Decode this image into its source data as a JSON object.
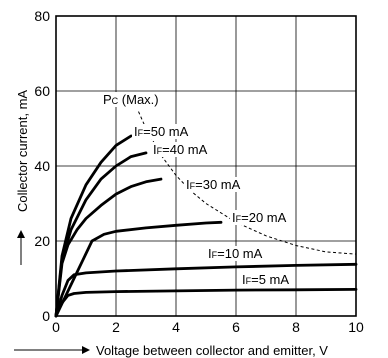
{
  "chart_data": {
    "type": "line",
    "xlabel": "Voltage between collector and emitter, V",
    "ylabel": "Collector current, mA",
    "xlim": [
      0,
      10
    ],
    "ylim": [
      0,
      80
    ],
    "x_ticks": [
      "0",
      "2",
      "4",
      "6",
      "8",
      "10"
    ],
    "y_ticks": [
      "0",
      "20",
      "40",
      "60",
      "80"
    ],
    "grid": true,
    "series": [
      {
        "name": "IF=50 mA",
        "label_main": "I",
        "label_sub": "F",
        "label_rest": "=50 mA",
        "x": [
          0,
          0.2,
          0.5,
          1.0,
          1.5,
          2.0,
          2.5
        ],
        "y": [
          0,
          16,
          26,
          35,
          41,
          45.5,
          48
        ]
      },
      {
        "name": "IF=40 mA",
        "label_main": "I",
        "label_sub": "F",
        "label_rest": "=40 mA",
        "x": [
          0,
          0.2,
          0.5,
          1.0,
          1.5,
          2.0,
          2.5,
          3.0
        ],
        "y": [
          0,
          15,
          23,
          31,
          36.5,
          40,
          42.5,
          43.5
        ]
      },
      {
        "name": "IF=30 mA",
        "label_main": "I",
        "label_sub": "F",
        "label_rest": "=30 mA",
        "x": [
          0,
          0.2,
          0.4,
          0.7,
          1.0,
          1.5,
          2.0,
          2.5,
          3.0,
          3.5
        ],
        "y": [
          0,
          14,
          19,
          23,
          26,
          29.5,
          32.5,
          34.5,
          35.8,
          36.5
        ]
      },
      {
        "name": "IF=20 mA",
        "label_main": "I",
        "label_sub": "F",
        "label_rest": "=20 mA",
        "x": [
          0,
          0.3,
          0.6,
          0.9,
          1.2,
          1.6,
          2.0,
          3.0,
          4.0,
          5.0,
          5.5
        ],
        "y": [
          0,
          5,
          10,
          15,
          20,
          21.8,
          22.6,
          23.5,
          24.2,
          24.8,
          25
        ]
      },
      {
        "name": "IF=10 mA",
        "label_main": "I",
        "label_sub": "F",
        "label_rest": "=10 mA",
        "x": [
          0,
          0.2,
          0.4,
          0.6,
          1.0,
          2.0,
          4.0,
          6.0,
          8.0,
          10.0
        ],
        "y": [
          0,
          5.5,
          9.5,
          11,
          11.5,
          12,
          12.6,
          13.1,
          13.5,
          13.8
        ]
      },
      {
        "name": "IF=5 mA",
        "label_main": "I",
        "label_sub": "F",
        "label_rest": "=5 mA",
        "x": [
          0,
          0.2,
          0.4,
          0.6,
          1.0,
          2.0,
          4.0,
          6.0,
          8.0,
          10.0
        ],
        "y": [
          0,
          3.5,
          5.5,
          6.0,
          6.3,
          6.5,
          6.7,
          6.9,
          7.0,
          7.1
        ]
      }
    ],
    "max_curve": {
      "name": "Pc (Max.)",
      "label_main": "P",
      "label_sub": "C",
      "label_rest": " (Max.)",
      "style": "dashed",
      "x": [
        2.75,
        3.0,
        3.5,
        4.0,
        4.5,
        5.0,
        6.0,
        7.0,
        8.0,
        9.0,
        10.0
      ],
      "y": [
        54.5,
        50,
        42.9,
        37.5,
        33.3,
        30,
        25,
        21.4,
        18.8,
        17.1,
        16.5
      ]
    }
  }
}
